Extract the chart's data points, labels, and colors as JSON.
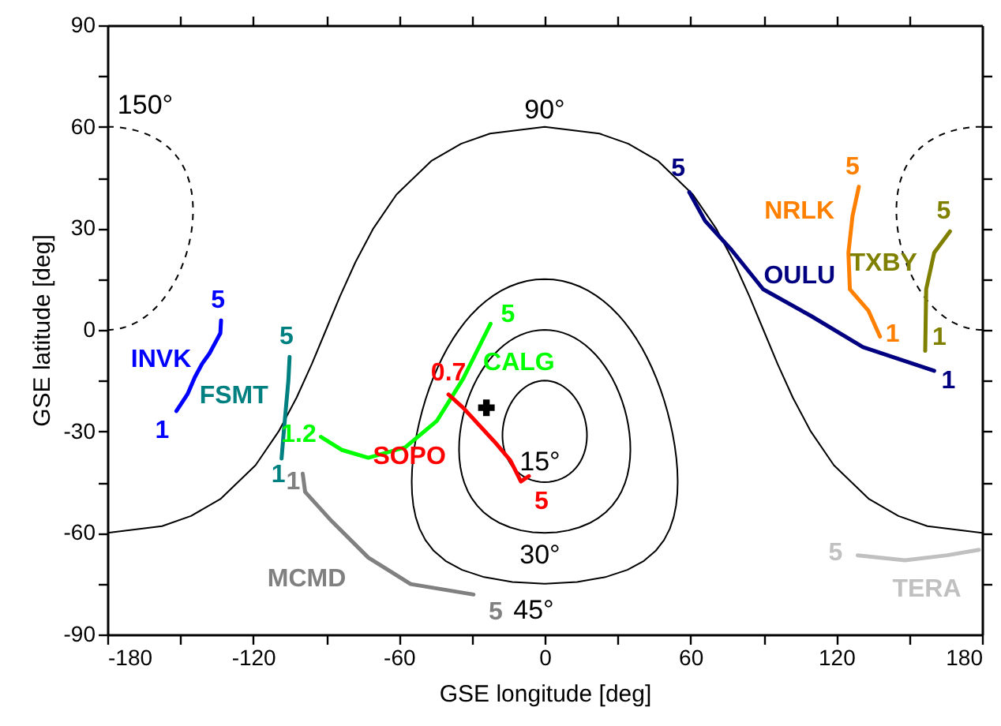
{
  "chart_data": {
    "type": "line",
    "xlabel": "GSE longitude [deg]",
    "ylabel": "GSE latitude [deg]",
    "xlim": [
      -180,
      180
    ],
    "ylim": [
      -90,
      90
    ],
    "xticks": [
      -180,
      {
        "value": -150,
        "label": null
      },
      -120,
      {
        "value": -90,
        "label": null
      },
      -60,
      {
        "value": -30,
        "label": null
      },
      0,
      {
        "value": 30,
        "label": null
      },
      60,
      {
        "value": 90,
        "label": null
      },
      120,
      {
        "value": 150,
        "label": null
      },
      180
    ],
    "yticks": [
      -90,
      {
        "value": -75,
        "label": null
      },
      -60,
      {
        "value": -45,
        "label": null
      },
      -30,
      {
        "value": -15,
        "label": null
      },
      0,
      {
        "value": 15,
        "label": null
      },
      30,
      {
        "value": 45,
        "label": null
      },
      60,
      {
        "value": 75,
        "label": null
      },
      90
    ],
    "grid": false,
    "series": [
      {
        "color": "#000000",
        "line_style": "solid",
        "x": [
          -180,
          -157.5,
          -145.6,
          -133.5,
          -119,
          -109.5,
          -102.1,
          -95.8,
          -90,
          -84.2,
          -77.9,
          -70.5,
          -61,
          -46.5,
          -34.4,
          -22.5,
          0,
          22.5,
          34.4,
          46.5,
          61,
          70.5,
          77.9,
          84.2,
          90,
          95.8,
          102.1,
          109.5,
          119,
          133.5,
          145.6,
          157.5,
          180
        ],
        "values": [
          -60,
          -58,
          -55,
          -50,
          -40,
          -30,
          -20,
          -10,
          0,
          10,
          20,
          30,
          40,
          50,
          55,
          58,
          60,
          58,
          55,
          50,
          40,
          30,
          20,
          10,
          0,
          -10,
          -20,
          -30,
          -40,
          -50,
          -55,
          -58,
          -60
        ]
      },
      {
        "name": "INVK",
        "color": "#0000ff",
        "line_style": "solid",
        "x": [
          -133.2,
          -133.5,
          -135,
          -138,
          -141,
          -144,
          -147,
          -151.6
        ],
        "values": [
          2.8,
          -1,
          -3,
          -7,
          -10,
          -14,
          -19,
          -24
        ]
      },
      {
        "name": "FSMT",
        "color": "#008080",
        "line_style": "solid",
        "x": [
          -105,
          -105.5,
          -106.5,
          -107.5,
          -108.3
        ],
        "values": [
          -8,
          -15,
          -23,
          -31,
          -38
        ]
      },
      {
        "name": "CALG",
        "color": "#00ff00",
        "line_style": "solid",
        "x": [
          -92.1,
          -83.4,
          -72.6,
          -57.4,
          -44.4,
          -33.6,
          -22.3
        ],
        "values": [
          -31.6,
          -35.5,
          -37.8,
          -34.7,
          -26.9,
          -14.5,
          1.8
        ]
      },
      {
        "name": "SOPO",
        "color": "#ff0000",
        "line_style": "solid",
        "x": [
          -39.6,
          -33.6,
          -20.6,
          -14.1,
          -9.8,
          -6.5
        ],
        "values": [
          -19.1,
          -23,
          -33.1,
          -38.6,
          -44.8,
          -43.2
        ]
      },
      {
        "name": "MCMD",
        "color": "#808080",
        "line_style": "solid",
        "x": [
          -99.6,
          -98.6,
          -87.7,
          -72.6,
          -55.2,
          -29.3
        ],
        "values": [
          -42.5,
          -47.9,
          -56.5,
          -67.3,
          -75.1,
          -78.2
        ]
      },
      {
        "name": "OULU",
        "color": "#000080",
        "line_style": "solid",
        "x": [
          59.5,
          66,
          76.9,
          89.9,
          109.4,
          131,
          160.3
        ],
        "values": [
          40.7,
          32.2,
          23.6,
          12,
          4.2,
          -5.1,
          -12.1
        ]
      },
      {
        "name": "NRLK",
        "color": "#ff8000",
        "line_style": "solid",
        "x": [
          129.3,
          126.7,
          125,
          125.6,
          133.2,
          138
        ],
        "values": [
          42.3,
          33.7,
          22.8,
          12,
          5.7,
          -2
        ]
      },
      {
        "name": "TXBY",
        "color": "#808000",
        "line_style": "solid",
        "x": [
          166.8,
          160.3,
          157,
          156.6
        ],
        "values": [
          29.1,
          22.8,
          12,
          -6.2
        ]
      },
      {
        "name": "TERA",
        "color": "#c0c0c0",
        "line_style": "solid",
        "x": [
          128.8,
          148.3,
          165.7,
          178.7
        ],
        "values": [
          -66.6,
          -68.1,
          -66.6,
          -65
        ]
      },
      {
        "type": "scatter",
        "color": "#000000",
        "marker": "cross",
        "x": [
          -24
        ],
        "values": [
          -23
        ]
      }
    ],
    "annotations": [
      "15°",
      "30°",
      "45°",
      "90°",
      "150°",
      {
        "text": "5",
        "x": -133.2,
        "y": 2.8
      },
      {
        "text": "1",
        "x": -151.6,
        "y": -24
      },
      {
        "text": "5",
        "x": -105,
        "y": -8
      },
      {
        "text": "1",
        "x": -108.3,
        "y": -38
      },
      {
        "text": "1.2",
        "x": -92.1,
        "y": -31.6
      },
      {
        "text": "5",
        "x": -22.3,
        "y": 1.8
      },
      {
        "text": "0.7",
        "x": -39.6,
        "y": -19.1
      },
      {
        "text": "5",
        "x": -6.5,
        "y": -43.2
      },
      {
        "text": "1",
        "x": -99.6,
        "y": -42.5
      },
      {
        "text": "5",
        "x": -29.3,
        "y": -78.2
      },
      {
        "text": "5",
        "x": 59.5,
        "y": 40.7
      },
      {
        "text": "1",
        "x": 160.3,
        "y": -12.1
      },
      {
        "text": "5",
        "x": 129.3,
        "y": 42.3
      },
      {
        "text": "1",
        "x": 138,
        "y": -2
      },
      {
        "text": "5",
        "x": 166.8,
        "y": 29.1
      },
      {
        "text": "1",
        "x": 156.6,
        "y": -6.2
      },
      {
        "text": "5",
        "x": 128.8,
        "y": -66.6
      }
    ]
  }
}
